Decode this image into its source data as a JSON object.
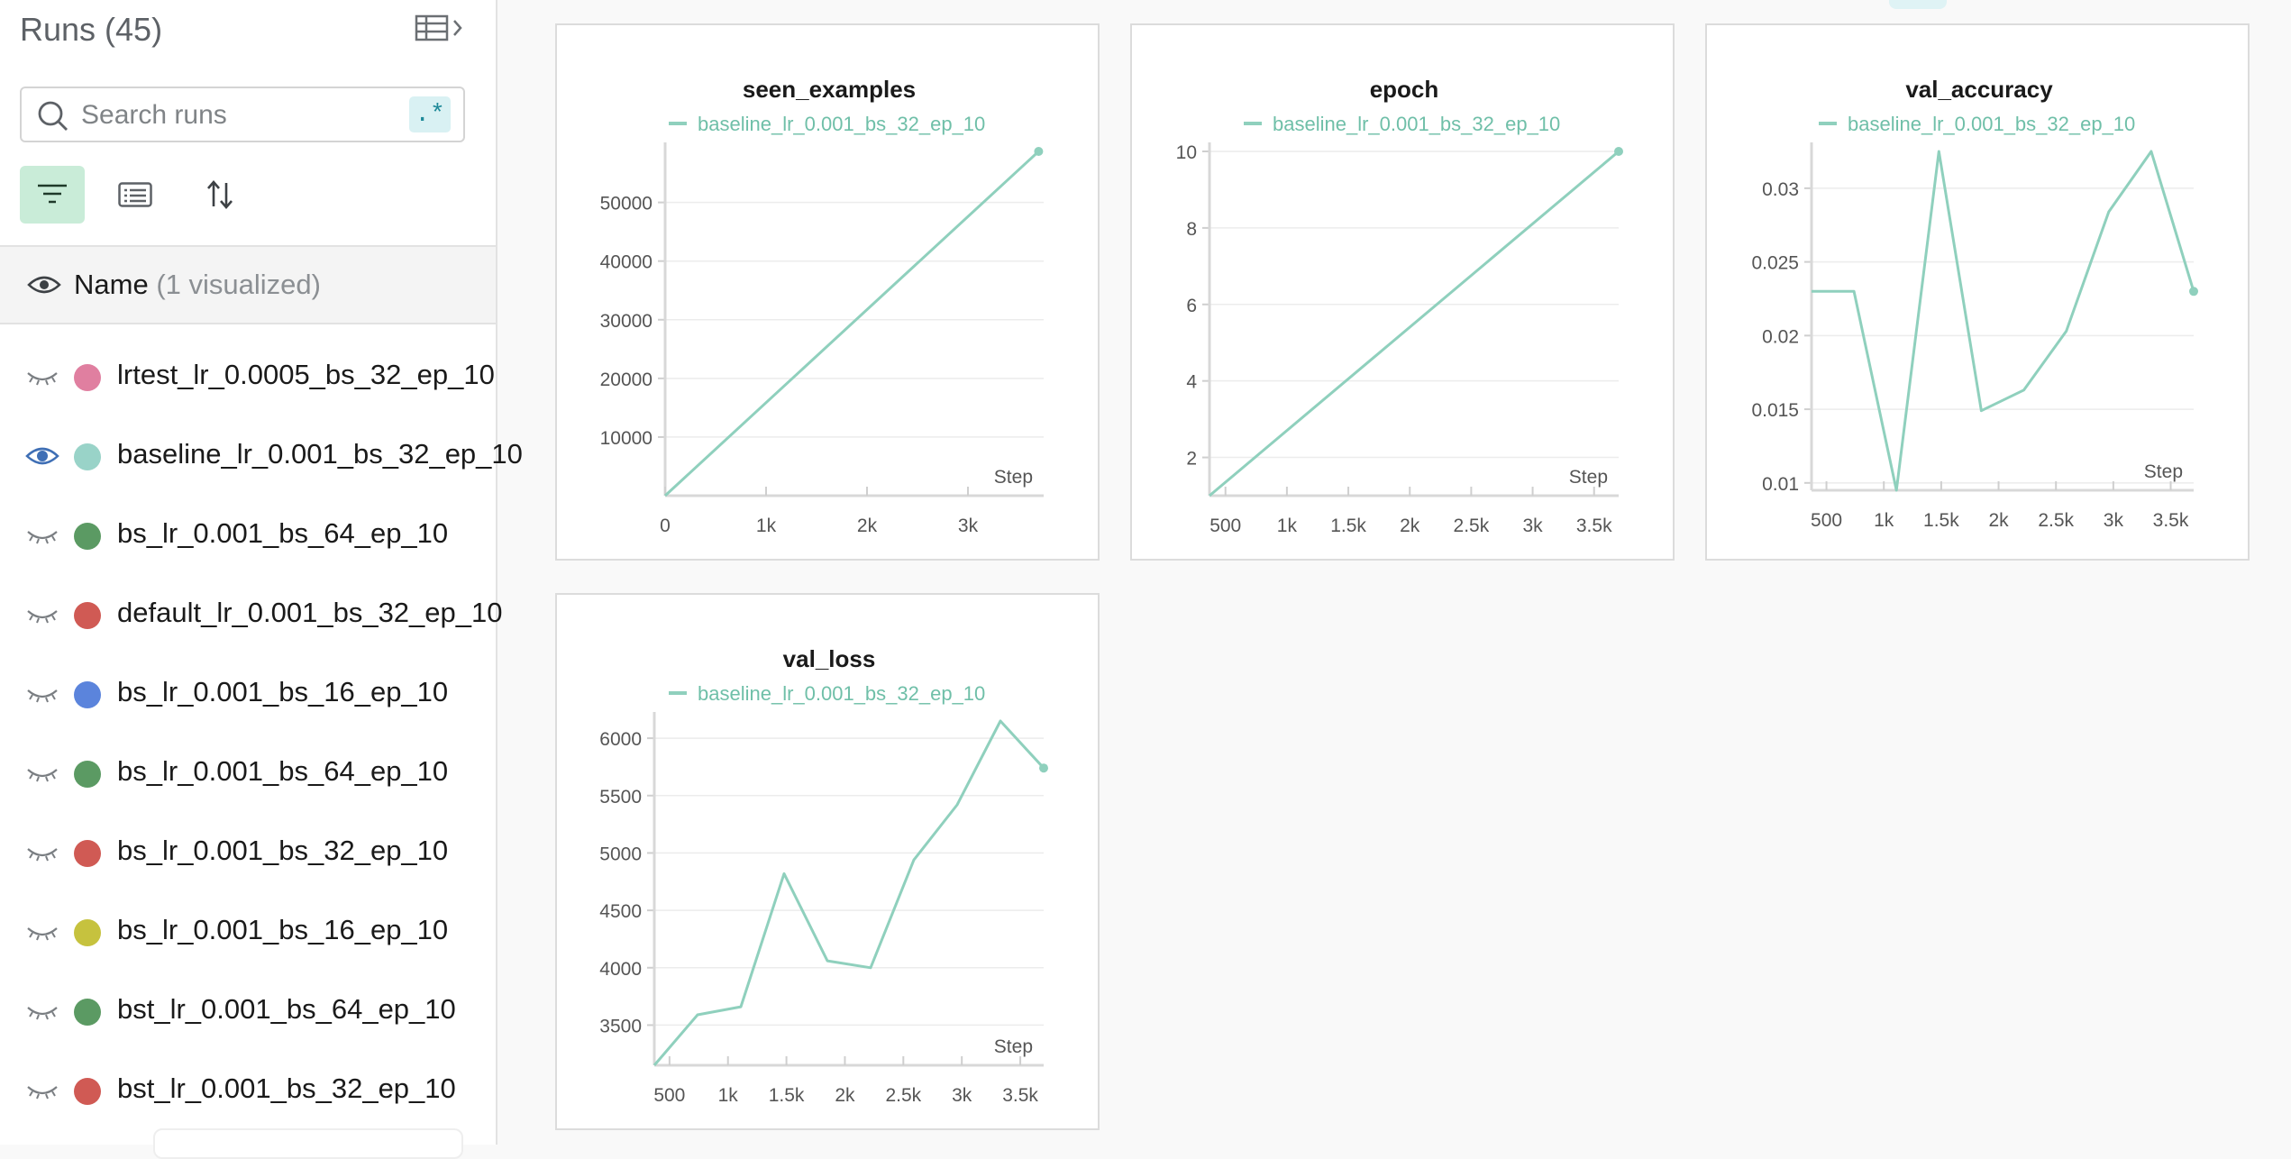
{
  "sidebar": {
    "title": "Runs (45)",
    "search": {
      "placeholder": "Search runs",
      "value": ""
    },
    "regex_label": ".*",
    "name_header": {
      "label": "Name",
      "visualized": "(1 visualized)"
    },
    "runs": [
      {
        "name": "lrtest_lr_0.0005_bs_32_ep_10",
        "color": "#e07fa0",
        "visible": false
      },
      {
        "name": "baseline_lr_0.001_bs_32_ep_10",
        "color": "#99d3c8",
        "visible": true
      },
      {
        "name": "bs_lr_0.001_bs_64_ep_10",
        "color": "#5b9a63",
        "visible": false
      },
      {
        "name": "default_lr_0.001_bs_32_ep_10",
        "color": "#d05a54",
        "visible": false
      },
      {
        "name": "bs_lr_0.001_bs_16_ep_10",
        "color": "#5b84dc",
        "visible": false
      },
      {
        "name": "bs_lr_0.001_bs_64_ep_10",
        "color": "#5b9a63",
        "visible": false
      },
      {
        "name": "bs_lr_0.001_bs_32_ep_10",
        "color": "#d05a54",
        "visible": false
      },
      {
        "name": "bs_lr_0.001_bs_16_ep_10",
        "color": "#c6c23e",
        "visible": false
      },
      {
        "name": "bst_lr_0.001_bs_64_ep_10",
        "color": "#5b9a63",
        "visible": false
      },
      {
        "name": "bst_lr_0.001_bs_32_ep_10",
        "color": "#d05a54",
        "visible": false
      }
    ]
  },
  "colors": {
    "series": "#8fd0bd",
    "accent": "#1f8a99",
    "filter_active": "#c9ecd8"
  },
  "chart_data": [
    {
      "type": "line",
      "title": "seen_examples",
      "legend": "baseline_lr_0.001_bs_32_ep_10",
      "xlabel": "Step",
      "xlim": [
        0,
        3750
      ],
      "ylim": [
        0,
        58700
      ],
      "xticks": [
        0,
        1000,
        2000,
        3000
      ],
      "xtick_labels": [
        "0",
        "1k",
        "2k",
        "3k"
      ],
      "yticks": [
        10000,
        20000,
        30000,
        40000,
        50000
      ],
      "ytick_labels": [
        "10000",
        "20000",
        "30000",
        "40000",
        "50000"
      ],
      "x": [
        0,
        3700
      ],
      "y": [
        0,
        58700
      ]
    },
    {
      "type": "line",
      "title": "epoch",
      "legend": "baseline_lr_0.001_bs_32_ep_10",
      "xlabel": "Step",
      "xlim": [
        370,
        3700
      ],
      "ylim": [
        1,
        10
      ],
      "xticks": [
        500,
        1000,
        1500,
        2000,
        2500,
        3000,
        3500
      ],
      "xtick_labels": [
        "500",
        "1k",
        "1.5k",
        "2k",
        "2.5k",
        "3k",
        "3.5k"
      ],
      "yticks": [
        2,
        4,
        6,
        8,
        10
      ],
      "ytick_labels": [
        "2",
        "4",
        "6",
        "8",
        "10"
      ],
      "x": [
        370,
        3700
      ],
      "y": [
        1,
        10
      ]
    },
    {
      "type": "line",
      "title": "val_accuracy",
      "legend": "baseline_lr_0.001_bs_32_ep_10",
      "xlabel": "Step",
      "xlim": [
        370,
        3700
      ],
      "ylim": [
        0.0095,
        0.0325
      ],
      "xticks": [
        500,
        1000,
        1500,
        2000,
        2500,
        3000,
        3500
      ],
      "xtick_labels": [
        "500",
        "1k",
        "1.5k",
        "2k",
        "2.5k",
        "3k",
        "3.5k"
      ],
      "yticks": [
        0.01,
        0.015,
        0.02,
        0.025,
        0.03
      ],
      "ytick_labels": [
        "0.01",
        "0.015",
        "0.02",
        "0.025",
        "0.03"
      ],
      "x": [
        370,
        740,
        1110,
        1480,
        1850,
        2220,
        2590,
        2960,
        3330,
        3700
      ],
      "y": [
        0.023,
        0.023,
        0.0095,
        0.0325,
        0.0149,
        0.0163,
        0.0203,
        0.0284,
        0.0325,
        0.023
      ]
    },
    {
      "type": "line",
      "title": "val_loss",
      "legend": "baseline_lr_0.001_bs_32_ep_10",
      "xlabel": "Step",
      "xlim": [
        370,
        3700
      ],
      "ylim": [
        3150,
        6150
      ],
      "xticks": [
        500,
        1000,
        1500,
        2000,
        2500,
        3000,
        3500
      ],
      "xtick_labels": [
        "500",
        "1k",
        "1.5k",
        "2k",
        "2.5k",
        "3k",
        "3.5k"
      ],
      "yticks": [
        3500,
        4000,
        4500,
        5000,
        5500,
        6000
      ],
      "ytick_labels": [
        "3500",
        "4000",
        "4500",
        "5000",
        "5500",
        "6000"
      ],
      "x": [
        370,
        740,
        1110,
        1480,
        1850,
        2220,
        2590,
        2960,
        3330,
        3700
      ],
      "y": [
        3150,
        3590,
        3660,
        4820,
        4060,
        4000,
        4940,
        5420,
        6150,
        5740
      ]
    }
  ]
}
